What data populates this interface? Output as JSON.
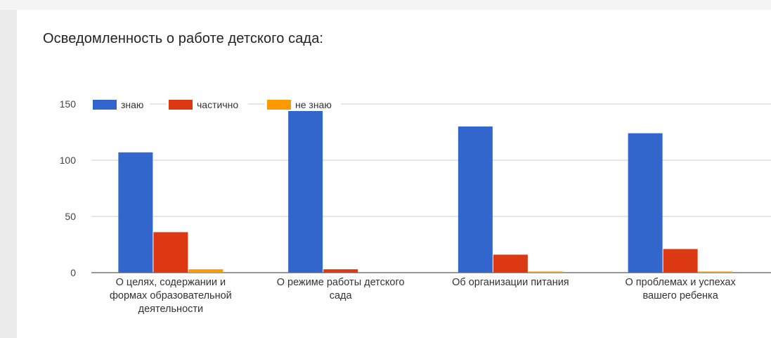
{
  "chart_data": {
    "type": "bar",
    "title": "Осведомленность о работе детского сада:",
    "categories": [
      [
        "О целях, содержании и",
        "формах образовательной",
        "деятельности"
      ],
      [
        "О режиме работы детского",
        "сада"
      ],
      [
        "Об организации питания"
      ],
      [
        "О проблемах и успехах",
        "вашего ребенка"
      ]
    ],
    "series": [
      {
        "name": "знаю",
        "color": "#3366cc",
        "values": [
          107,
          144,
          130,
          124
        ]
      },
      {
        "name": "частично",
        "color": "#dc3912",
        "values": [
          36,
          3,
          16,
          21
        ]
      },
      {
        "name": "не знаю",
        "color": "#ff9900",
        "values": [
          3,
          0,
          1,
          1
        ]
      }
    ],
    "y_ticks": [
      0,
      50,
      100,
      150
    ],
    "ylim": [
      0,
      150
    ],
    "grid": true,
    "legend_position": "top-left"
  }
}
